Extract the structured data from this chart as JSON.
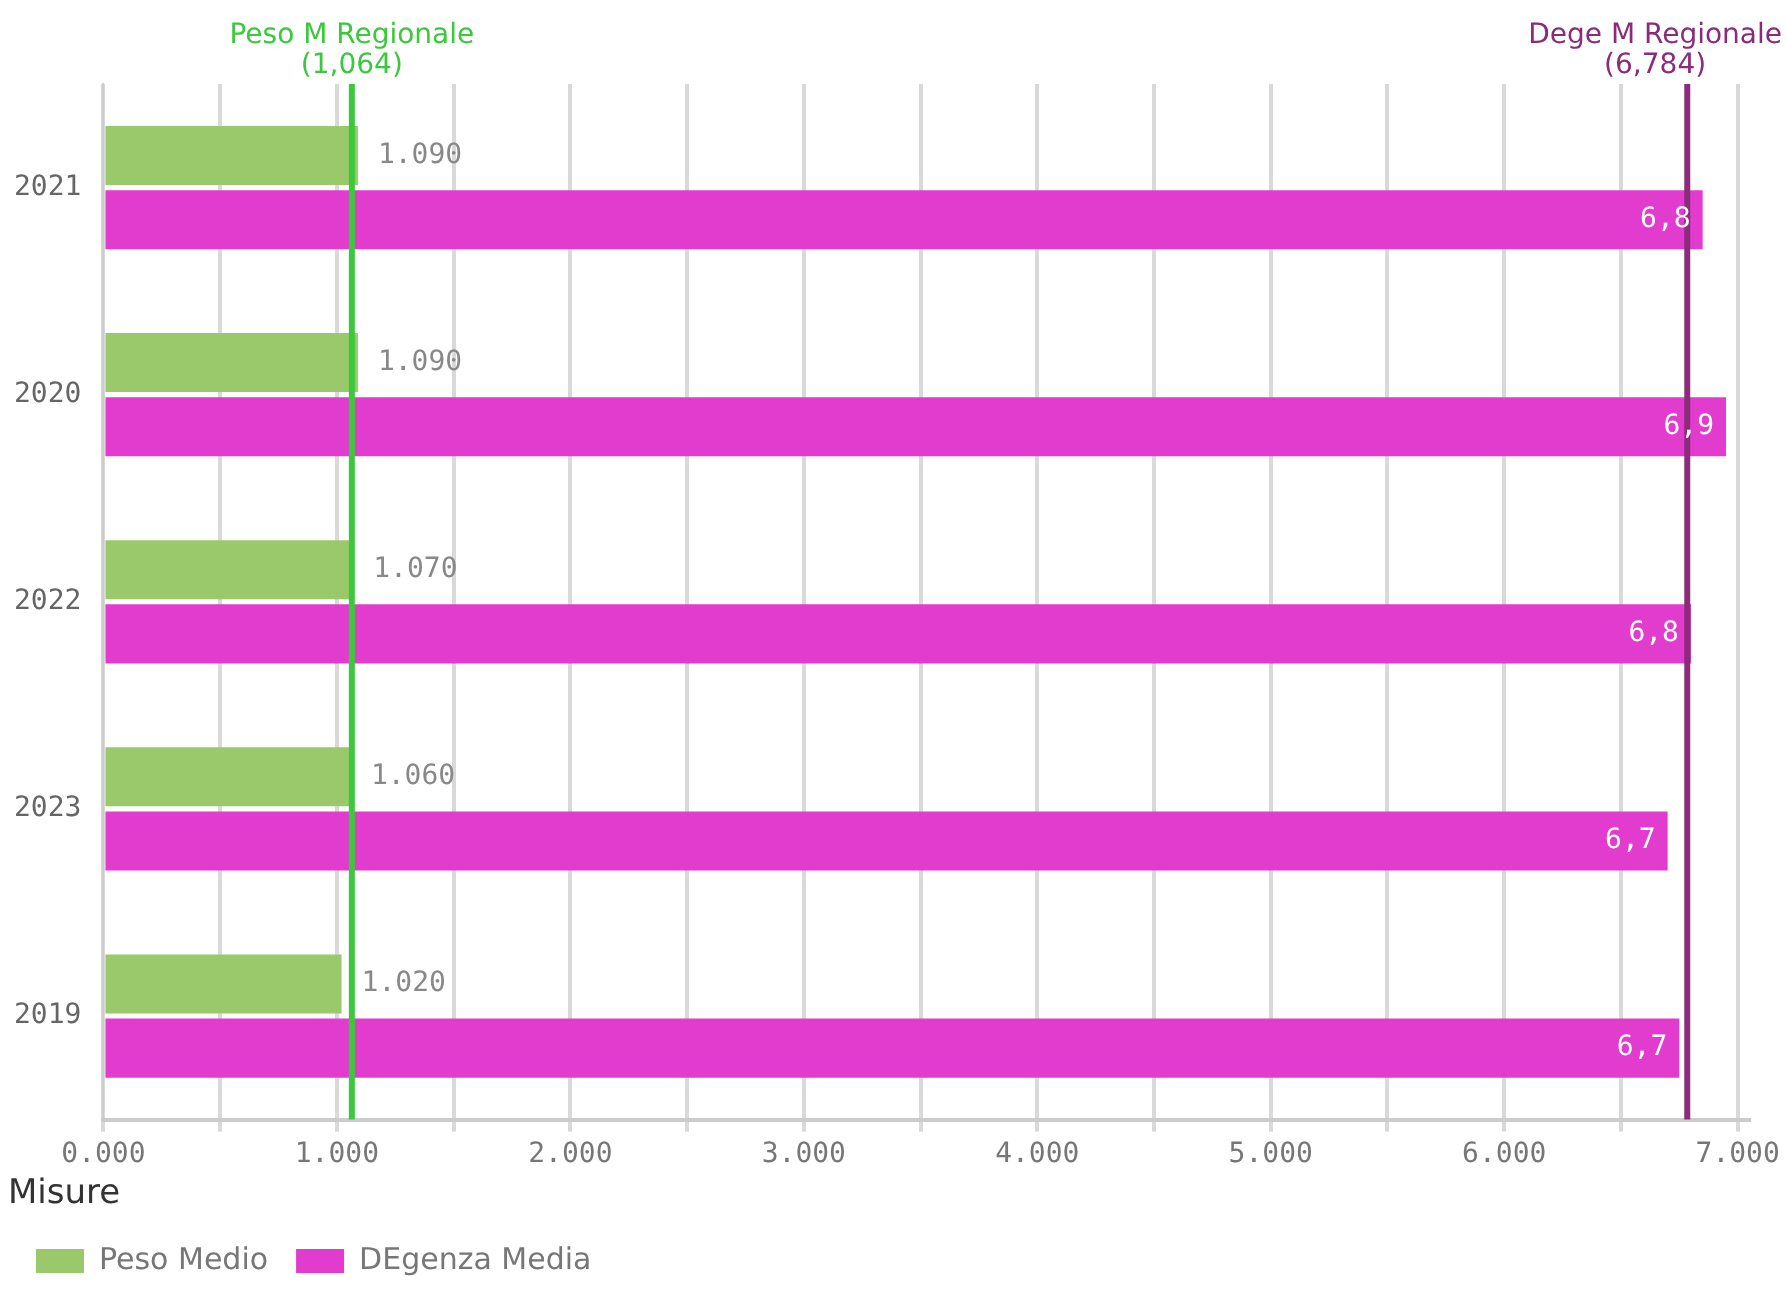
{
  "chart_data": {
    "type": "bar",
    "orientation": "horizontal",
    "categories": [
      "2021",
      "2020",
      "2022",
      "2023",
      "2019"
    ],
    "series": [
      {
        "name": "Peso Medio",
        "color": "#99c96a",
        "values": [
          1.09,
          1.09,
          1.07,
          1.06,
          1.02
        ],
        "value_labels": [
          "1.090",
          "1.090",
          "1.070",
          "1.060",
          "1.020"
        ]
      },
      {
        "name": "DEgenza Media",
        "color": "#e23ccf",
        "values": [
          6.85,
          6.95,
          6.8,
          6.7,
          6.75
        ],
        "value_labels": [
          "6,8",
          "6,9",
          "6,8",
          "6,7",
          "6,7"
        ]
      }
    ],
    "xlim": [
      0,
      7.05
    ],
    "xticks": [
      {
        "value": 0,
        "label": "0.000"
      },
      {
        "value": 0.5,
        "label": null
      },
      {
        "value": 1,
        "label": "1.000"
      },
      {
        "value": 1.5,
        "label": null
      },
      {
        "value": 2,
        "label": "2.000"
      },
      {
        "value": 2.5,
        "label": null
      },
      {
        "value": 3,
        "label": "3.000"
      },
      {
        "value": 3.5,
        "label": null
      },
      {
        "value": 4,
        "label": "4.000"
      },
      {
        "value": 4.5,
        "label": null
      },
      {
        "value": 5,
        "label": "5.000"
      },
      {
        "value": 5.5,
        "label": null
      },
      {
        "value": 6,
        "label": "6.000"
      },
      {
        "value": 6.5,
        "label": null
      },
      {
        "value": 7,
        "label": "7.000"
      }
    ],
    "ref_lines": [
      {
        "axis": "x",
        "value": 1.064,
        "label": "Peso M Regionale\n(1,064)",
        "color": "#3cc83c"
      },
      {
        "axis": "x",
        "value": 6.784,
        "label": "Dege M Regionale\n(6,784)",
        "color": "#8b2c7a"
      }
    ],
    "grid": "x",
    "legend": "bottom",
    "legend_title": "Misure"
  }
}
